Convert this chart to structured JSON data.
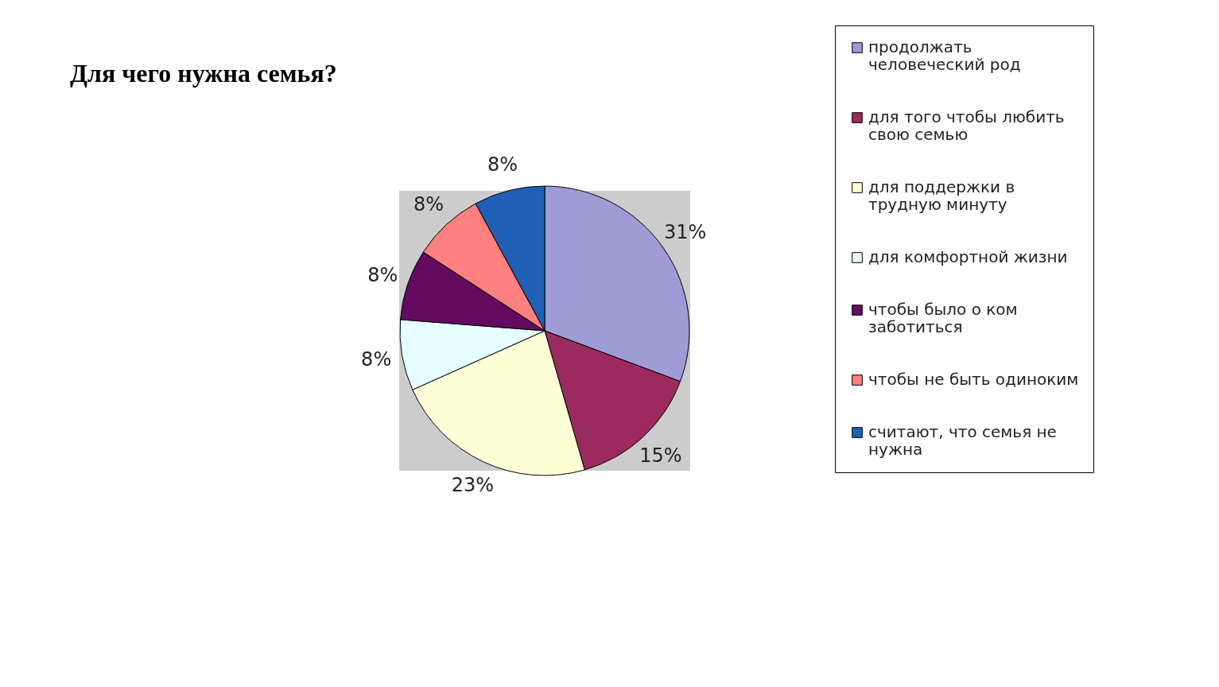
{
  "chart_data": {
    "type": "pie",
    "title": "Для чего нужна семья?",
    "categories": [
      "продолжать человеческий род",
      "для того чтобы любить свою семью",
      "для поддержки в трудную минуту",
      "для комфортной жизни",
      "чтобы было о ком заботиться",
      "чтобы не быть одиноким",
      "считают, что семья не нужна"
    ],
    "values": [
      31,
      15,
      23,
      8,
      8,
      8,
      8
    ],
    "colors": [
      "#9f9bd6",
      "#9b2a5f",
      "#ffffd8",
      "#e6ffff",
      "#640a5f",
      "#ff8080",
      "#1f5fb5"
    ],
    "value_labels": [
      "31%",
      "15%",
      "23%",
      "8%",
      "8%",
      "8%",
      "8%"
    ],
    "legend": "right"
  }
}
